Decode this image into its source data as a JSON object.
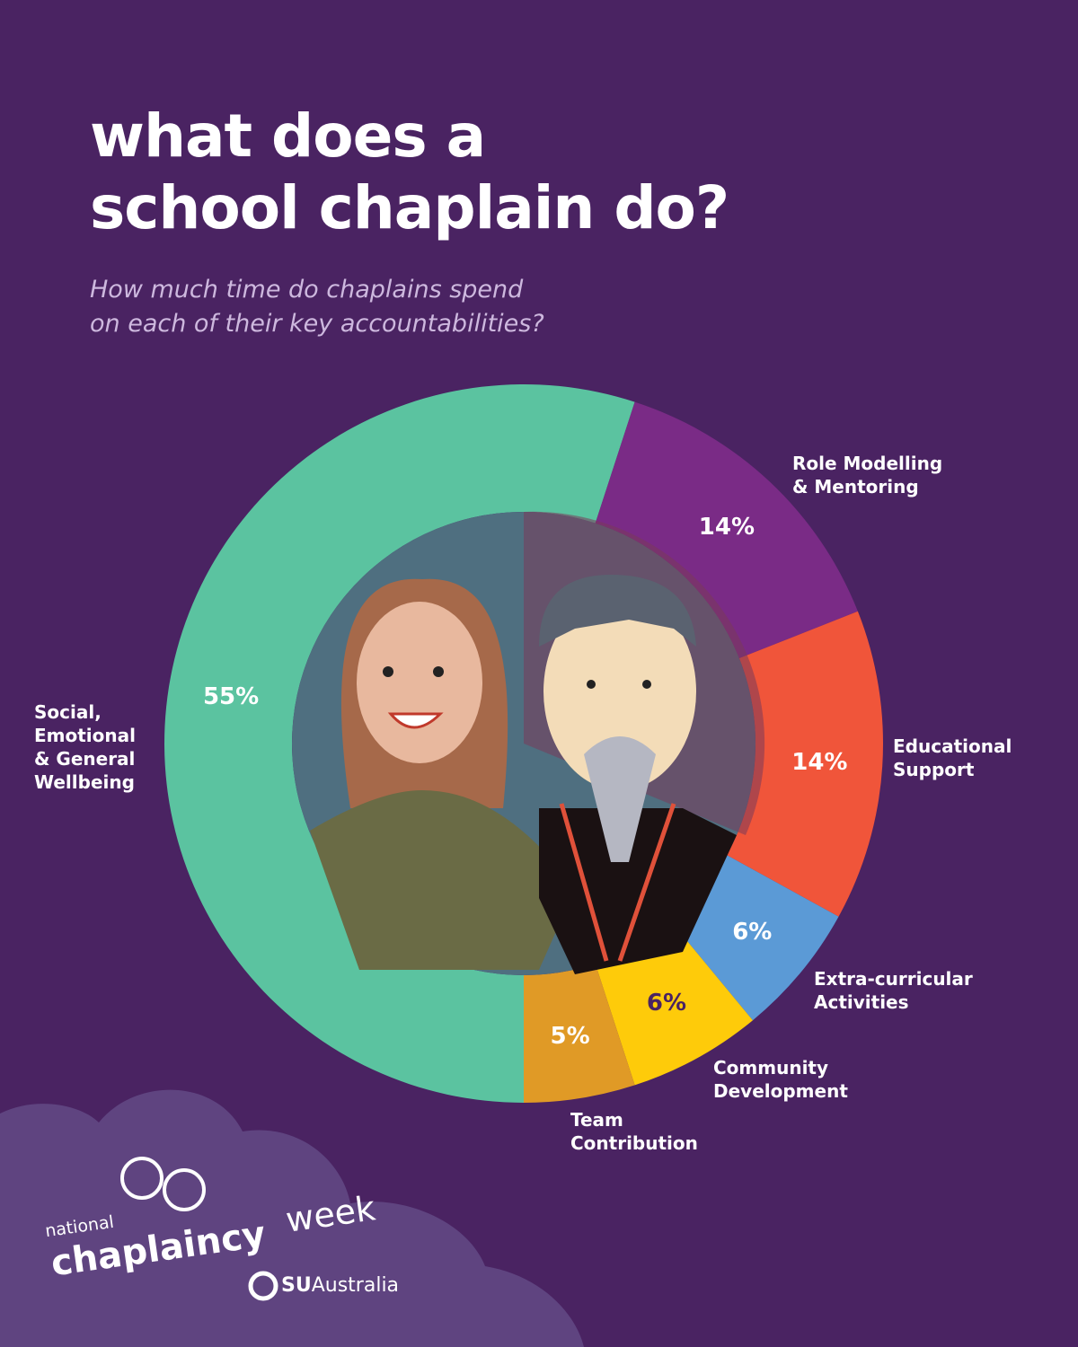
{
  "chart_data": {
    "type": "pie",
    "title": "what does a\nschool chaplain do?",
    "subtitle": "How much time do chaplains spend\non each of their key accountabilities?",
    "categories": [
      "Social,\nEmotional\n& General\nWellbeing",
      "Role Modelling\n& Mentoring",
      "Educational\nSupport",
      "Extra-curricular\nActivities",
      "Community\nDevelopment",
      "Team\nContribution"
    ],
    "values": [
      55,
      14,
      14,
      6,
      6,
      5
    ],
    "value_labels": [
      "55%",
      "14%",
      "14%",
      "6%",
      "6%",
      "5%"
    ],
    "colors": [
      "#5bc3a0",
      "#7a2b86",
      "#f0553a",
      "#5b9ad6",
      "#fecb0a",
      "#e09a26"
    ]
  },
  "footer": {
    "line1": "national",
    "line2": "chaplaincy",
    "line3": "week",
    "brand_bold": "SU",
    "brand": "Australia"
  }
}
